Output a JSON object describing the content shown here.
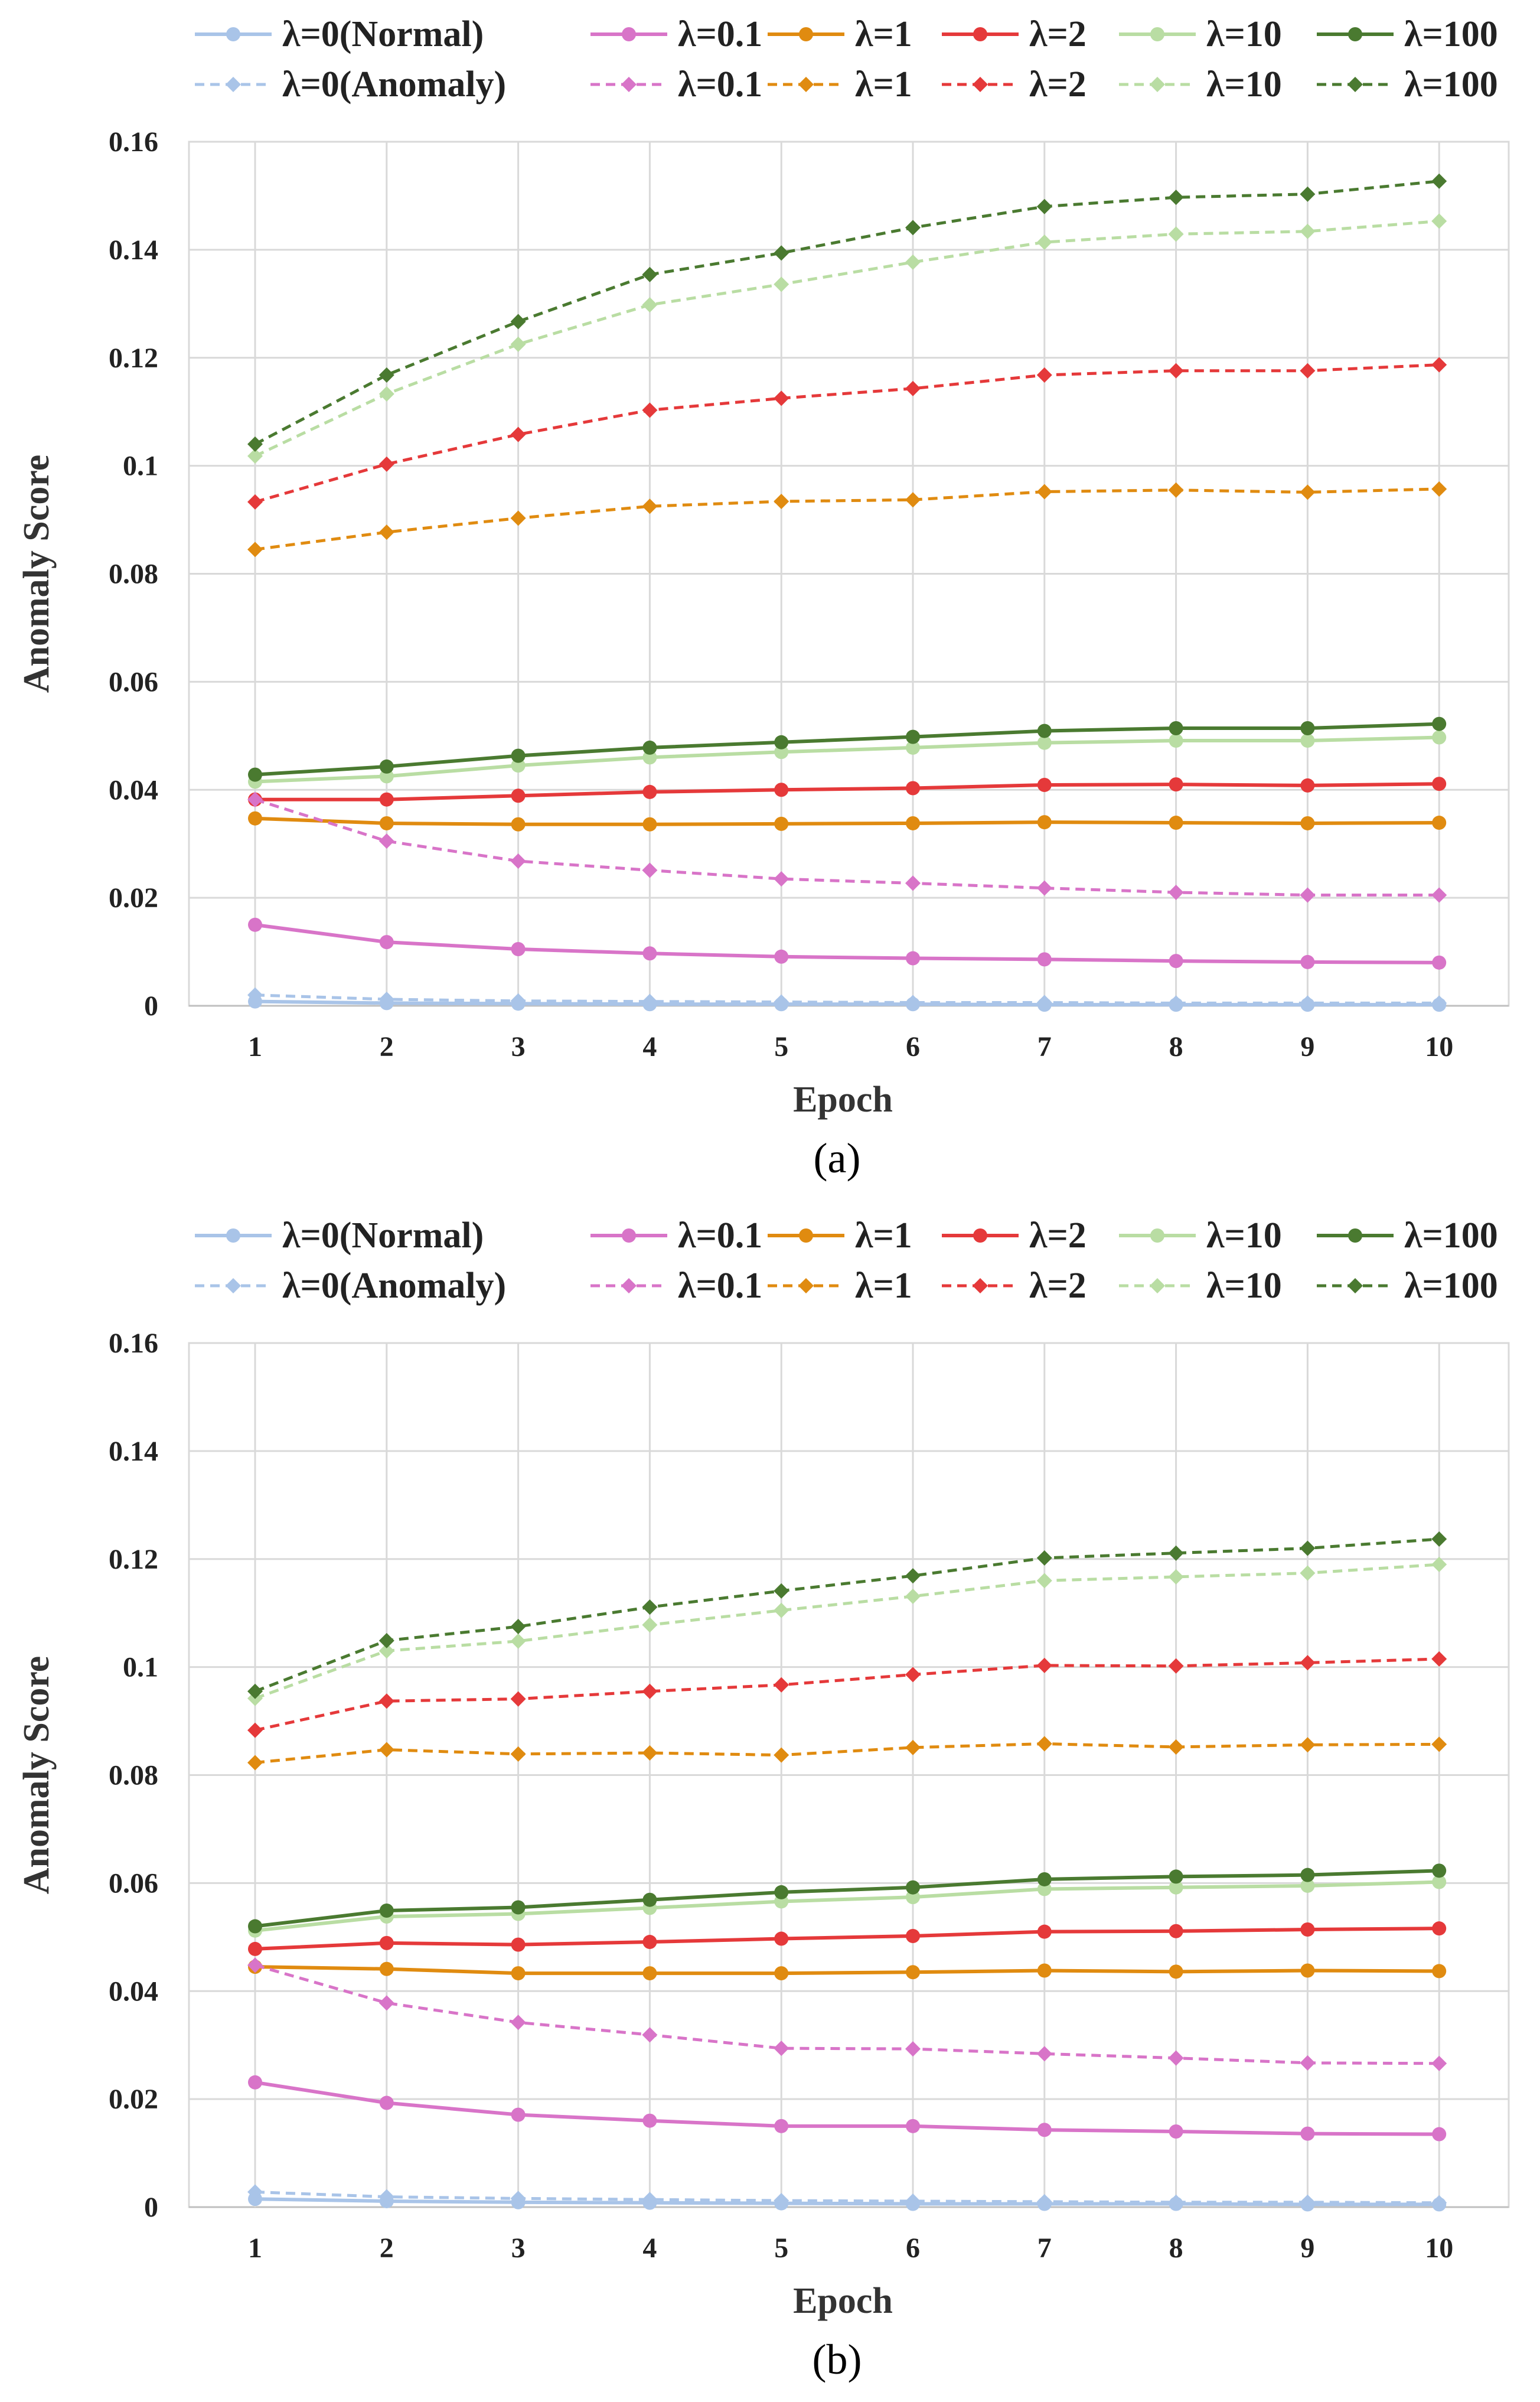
{
  "chart_data": [
    {
      "type": "line",
      "panel": "a",
      "caption": "(a)",
      "xlabel": "Epoch",
      "ylabel": "Anomaly Score",
      "x": [
        1,
        2,
        3,
        4,
        5,
        6,
        7,
        8,
        9,
        10
      ],
      "ylim": [
        0,
        0.16
      ],
      "yticks": [
        0,
        0.02,
        0.04,
        0.06,
        0.08,
        0.1,
        0.12,
        0.14,
        0.16
      ],
      "ytick_labels": [
        "0",
        "0.02",
        "0.04",
        "0.06",
        "0.08",
        "0.1",
        "0.12",
        "0.14",
        "0.16"
      ],
      "grid": true,
      "legend_position": "top",
      "series": [
        {
          "name": "λ=0(Normal)",
          "color": "#a9c4e8",
          "style": "solid",
          "marker": "circle",
          "values": [
            0.0008,
            0.0005,
            0.0004,
            0.0003,
            0.0003,
            0.0003,
            0.0002,
            0.0002,
            0.0002,
            0.0002
          ]
        },
        {
          "name": "λ=0.1",
          "color": "#d874c8",
          "style": "solid",
          "marker": "circle",
          "values": [
            0.015,
            0.0118,
            0.0105,
            0.0097,
            0.0091,
            0.0088,
            0.0086,
            0.0083,
            0.0081,
            0.008
          ]
        },
        {
          "name": "λ=1",
          "color": "#e08b10",
          "style": "solid",
          "marker": "circle",
          "values": [
            0.0347,
            0.0338,
            0.0336,
            0.0336,
            0.0337,
            0.0338,
            0.034,
            0.0339,
            0.0338,
            0.0339
          ]
        },
        {
          "name": "λ=2",
          "color": "#e5393a",
          "style": "solid",
          "marker": "circle",
          "values": [
            0.0382,
            0.0382,
            0.0389,
            0.0396,
            0.04,
            0.0403,
            0.0409,
            0.041,
            0.0408,
            0.0411
          ]
        },
        {
          "name": "λ=10",
          "color": "#b9dda3",
          "style": "solid",
          "marker": "circle",
          "values": [
            0.0415,
            0.0425,
            0.0445,
            0.046,
            0.047,
            0.0478,
            0.0487,
            0.0491,
            0.0491,
            0.0497
          ]
        },
        {
          "name": "λ=100",
          "color": "#4a7a30",
          "style": "solid",
          "marker": "circle",
          "values": [
            0.0428,
            0.0443,
            0.0463,
            0.0478,
            0.0488,
            0.0498,
            0.0509,
            0.0514,
            0.0514,
            0.0522
          ]
        },
        {
          "name": "λ=0(Anomaly)",
          "color": "#a9c4e8",
          "style": "dashed",
          "marker": "diamond",
          "values": [
            0.002,
            0.0012,
            0.0009,
            0.0008,
            0.0007,
            0.0006,
            0.0006,
            0.0005,
            0.0005,
            0.0005
          ]
        },
        {
          "name": "λ=0.1",
          "color": "#d874c8",
          "style": "dashed",
          "marker": "diamond",
          "values": [
            0.0382,
            0.0305,
            0.0268,
            0.0251,
            0.0235,
            0.0227,
            0.0218,
            0.021,
            0.0205,
            0.0205
          ]
        },
        {
          "name": "λ=1",
          "color": "#e08b10",
          "style": "dashed",
          "marker": "diamond",
          "values": [
            0.0845,
            0.0877,
            0.0903,
            0.0925,
            0.0934,
            0.0937,
            0.0952,
            0.0955,
            0.0951,
            0.0957
          ]
        },
        {
          "name": "λ=2",
          "color": "#e5393a",
          "style": "dashed",
          "marker": "diamond",
          "values": [
            0.0933,
            0.1003,
            0.1058,
            0.1103,
            0.1125,
            0.1143,
            0.1168,
            0.1176,
            0.1176,
            0.1187
          ]
        },
        {
          "name": "λ=10",
          "color": "#b9dda3",
          "style": "dashed",
          "marker": "diamond",
          "values": [
            0.1018,
            0.1133,
            0.1225,
            0.1298,
            0.1336,
            0.1377,
            0.1414,
            0.1429,
            0.1434,
            0.1453
          ]
        },
        {
          "name": "λ=100",
          "color": "#4a7a30",
          "style": "dashed",
          "marker": "diamond",
          "values": [
            0.104,
            0.1168,
            0.1267,
            0.1354,
            0.1394,
            0.1441,
            0.148,
            0.1497,
            0.1503,
            0.1527
          ]
        }
      ]
    },
    {
      "type": "line",
      "panel": "b",
      "caption": "(b)",
      "xlabel": "Epoch",
      "ylabel": "Anomaly Score",
      "x": [
        1,
        2,
        3,
        4,
        5,
        6,
        7,
        8,
        9,
        10
      ],
      "ylim": [
        0,
        0.16
      ],
      "yticks": [
        0,
        0.02,
        0.04,
        0.06,
        0.08,
        0.1,
        0.12,
        0.14,
        0.16
      ],
      "ytick_labels": [
        "0",
        "0.02",
        "0.04",
        "0.06",
        "0.08",
        "0.1",
        "0.12",
        "0.14",
        "0.16"
      ],
      "grid": true,
      "legend_position": "top",
      "series": [
        {
          "name": "λ=0(Normal)",
          "color": "#a9c4e8",
          "style": "solid",
          "marker": "circle",
          "values": [
            0.0015,
            0.0011,
            0.0009,
            0.0008,
            0.0007,
            0.0006,
            0.0006,
            0.0006,
            0.0005,
            0.0005
          ]
        },
        {
          "name": "λ=0.1",
          "color": "#d874c8",
          "style": "solid",
          "marker": "circle",
          "values": [
            0.0231,
            0.0193,
            0.0171,
            0.016,
            0.015,
            0.015,
            0.0143,
            0.014,
            0.0136,
            0.0135
          ]
        },
        {
          "name": "λ=1",
          "color": "#e08b10",
          "style": "solid",
          "marker": "circle",
          "values": [
            0.0445,
            0.0441,
            0.0433,
            0.0433,
            0.0433,
            0.0435,
            0.0438,
            0.0436,
            0.0438,
            0.0437
          ]
        },
        {
          "name": "λ=2",
          "color": "#e5393a",
          "style": "solid",
          "marker": "circle",
          "values": [
            0.0478,
            0.0489,
            0.0486,
            0.0491,
            0.0497,
            0.0502,
            0.051,
            0.0511,
            0.0514,
            0.0516
          ]
        },
        {
          "name": "λ=10",
          "color": "#b9dda3",
          "style": "solid",
          "marker": "circle",
          "values": [
            0.0512,
            0.0538,
            0.0543,
            0.0554,
            0.0566,
            0.0574,
            0.0589,
            0.0592,
            0.0595,
            0.0602
          ]
        },
        {
          "name": "λ=100",
          "color": "#4a7a30",
          "style": "solid",
          "marker": "circle",
          "values": [
            0.052,
            0.0549,
            0.0555,
            0.0569,
            0.0583,
            0.0592,
            0.0607,
            0.0612,
            0.0615,
            0.0623
          ]
        },
        {
          "name": "λ=0(Anomaly)",
          "color": "#a9c4e8",
          "style": "dashed",
          "marker": "diamond",
          "values": [
            0.0028,
            0.0019,
            0.0016,
            0.0014,
            0.0012,
            0.0011,
            0.001,
            0.0009,
            0.0009,
            0.0008
          ]
        },
        {
          "name": "λ=0.1",
          "color": "#d874c8",
          "style": "dashed",
          "marker": "diamond",
          "values": [
            0.0448,
            0.0378,
            0.0342,
            0.0319,
            0.0294,
            0.0293,
            0.0284,
            0.0276,
            0.0267,
            0.0266
          ]
        },
        {
          "name": "λ=1",
          "color": "#e08b10",
          "style": "dashed",
          "marker": "diamond",
          "values": [
            0.0823,
            0.0847,
            0.0839,
            0.0841,
            0.0837,
            0.0851,
            0.0858,
            0.0852,
            0.0856,
            0.0857
          ]
        },
        {
          "name": "λ=2",
          "color": "#e5393a",
          "style": "dashed",
          "marker": "diamond",
          "values": [
            0.0883,
            0.0937,
            0.0941,
            0.0955,
            0.0967,
            0.0986,
            0.1003,
            0.1002,
            0.1008,
            0.1015
          ]
        },
        {
          "name": "λ=10",
          "color": "#b9dda3",
          "style": "dashed",
          "marker": "diamond",
          "values": [
            0.0942,
            0.103,
            0.1048,
            0.1078,
            0.1105,
            0.1131,
            0.116,
            0.1167,
            0.1174,
            0.119
          ]
        },
        {
          "name": "λ=100",
          "color": "#4a7a30",
          "style": "dashed",
          "marker": "diamond",
          "values": [
            0.0955,
            0.1049,
            0.1075,
            0.1111,
            0.1141,
            0.1169,
            0.1202,
            0.1211,
            0.122,
            0.1237
          ]
        }
      ]
    }
  ]
}
